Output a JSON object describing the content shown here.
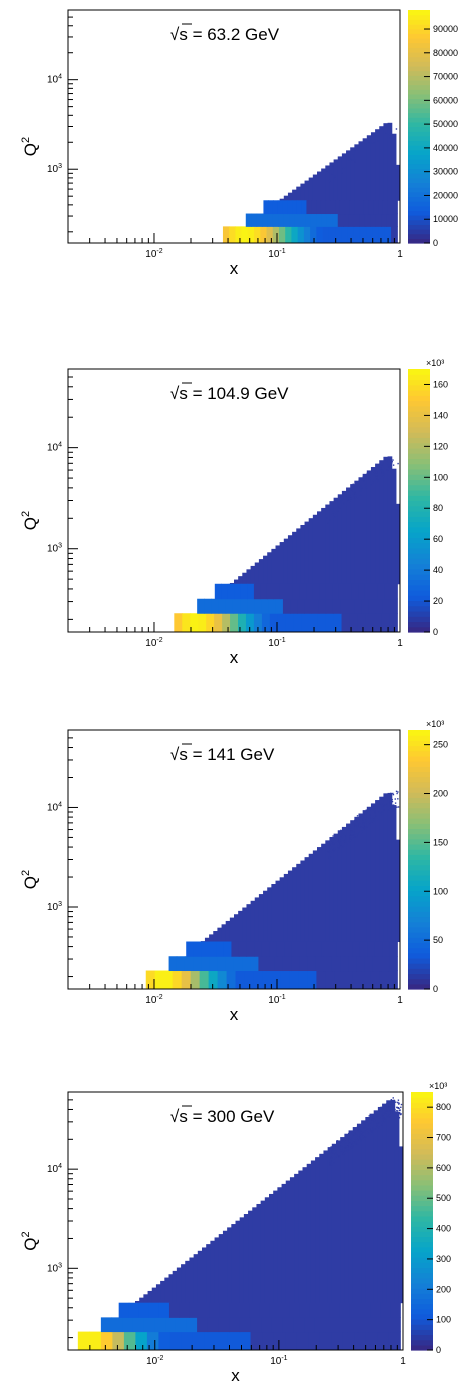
{
  "chart_data": [
    {
      "type": "heatmap",
      "title": "√s = 63.2 GeV",
      "title_radical": "√",
      "title_text": "s = 63.2 GeV",
      "xlabel": "x",
      "ylabel": "Q",
      "ylabel_sup": "2",
      "xscale": "log",
      "yscale": "log",
      "xlim": [
        0.002,
        1
      ],
      "ylim": [
        150,
        60000
      ],
      "x_ticks": [
        {
          "value": 0.01,
          "base": "10",
          "exp": "-2"
        },
        {
          "value": 0.1,
          "base": "10",
          "exp": "-1"
        },
        {
          "value": 1,
          "label": "1"
        }
      ],
      "y_ticks": [
        {
          "value": 1000,
          "base": "10",
          "exp": "3"
        },
        {
          "value": 10000,
          "base": "10",
          "exp": "4"
        }
      ],
      "x_min_edge": 0.031,
      "x_max_edge": 0.95,
      "q2_max": 3300,
      "bands": [
        [
          150,
          230
        ],
        [
          230,
          320
        ],
        [
          320,
          450
        ]
      ],
      "band_right": [
        0.82,
        0.3,
        0.16
      ],
      "peak_x": 0.055,
      "peak_value": 95000,
      "colorbar": {
        "min": 0,
        "max": 98000,
        "multiplier": "",
        "ticks": [
          {
            "value": 0,
            "label": "0"
          },
          {
            "value": 10000,
            "label": "10000"
          },
          {
            "value": 20000,
            "label": "20000"
          },
          {
            "value": 30000,
            "label": "30000"
          },
          {
            "value": 40000,
            "label": "40000"
          },
          {
            "value": 50000,
            "label": "50000"
          },
          {
            "value": 60000,
            "label": "60000"
          },
          {
            "value": 70000,
            "label": "70000"
          },
          {
            "value": 80000,
            "label": "80000"
          },
          {
            "value": 90000,
            "label": "90000"
          }
        ]
      }
    },
    {
      "type": "heatmap",
      "title": "√s = 104.9 GeV",
      "title_radical": "√",
      "title_text": "s = 104.9 GeV",
      "xlabel": "x",
      "ylabel": "Q",
      "ylabel_sup": "2",
      "xscale": "log",
      "yscale": "log",
      "xlim": [
        0.002,
        1
      ],
      "ylim": [
        150,
        60000
      ],
      "x_ticks": [
        {
          "value": 0.01,
          "base": "10",
          "exp": "-2"
        },
        {
          "value": 0.1,
          "base": "10",
          "exp": "-1"
        },
        {
          "value": 1,
          "label": "1"
        }
      ],
      "y_ticks": [
        {
          "value": 1000,
          "base": "10",
          "exp": "3"
        },
        {
          "value": 10000,
          "base": "10",
          "exp": "4"
        }
      ],
      "x_min_edge": 0.0105,
      "x_max_edge": 0.95,
      "q2_max": 8200,
      "bands": [
        [
          150,
          230
        ],
        [
          230,
          320
        ],
        [
          320,
          450
        ]
      ],
      "band_right": [
        0.3,
        0.11,
        0.06
      ],
      "peak_x": 0.022,
      "peak_value": 165000,
      "colorbar": {
        "min": 0,
        "max": 170000,
        "multiplier": "×10³",
        "ticks": [
          {
            "value": 0,
            "label": "0"
          },
          {
            "value": 20000,
            "label": "20"
          },
          {
            "value": 40000,
            "label": "40"
          },
          {
            "value": 60000,
            "label": "60"
          },
          {
            "value": 80000,
            "label": "80"
          },
          {
            "value": 100000,
            "label": "100"
          },
          {
            "value": 120000,
            "label": "120"
          },
          {
            "value": 140000,
            "label": "140"
          },
          {
            "value": 160000,
            "label": "160"
          }
        ]
      }
    },
    {
      "type": "heatmap",
      "title": "√s = 141 GeV",
      "title_radical": "√",
      "title_text": "s = 141 GeV",
      "xlabel": "x",
      "ylabel": "Q",
      "ylabel_sup": "2",
      "xscale": "log",
      "yscale": "log",
      "xlim": [
        0.002,
        1
      ],
      "ylim": [
        150,
        60000
      ],
      "x_ticks": [
        {
          "value": 0.01,
          "base": "10",
          "exp": "-2"
        },
        {
          "value": 0.1,
          "base": "10",
          "exp": "-1"
        },
        {
          "value": 1,
          "label": "1"
        }
      ],
      "y_ticks": [
        {
          "value": 1000,
          "base": "10",
          "exp": "3"
        },
        {
          "value": 10000,
          "base": "10",
          "exp": "4"
        }
      ],
      "x_min_edge": 0.0065,
      "x_max_edge": 0.95,
      "q2_max": 14000,
      "bands": [
        [
          150,
          230
        ],
        [
          230,
          320
        ],
        [
          320,
          450
        ]
      ],
      "band_right": [
        0.2,
        0.07,
        0.04
      ],
      "peak_x": 0.012,
      "peak_value": 255000,
      "colorbar": {
        "min": 0,
        "max": 265000,
        "multiplier": "×10³",
        "ticks": [
          {
            "value": 0,
            "label": "0"
          },
          {
            "value": 50000,
            "label": "50"
          },
          {
            "value": 100000,
            "label": "100"
          },
          {
            "value": 150000,
            "label": "150"
          },
          {
            "value": 200000,
            "label": "200"
          },
          {
            "value": 250000,
            "label": "250"
          }
        ]
      }
    },
    {
      "type": "heatmap",
      "title": "√s = 300 GeV",
      "title_radical": "√",
      "title_text": "s = 300 GeV",
      "xlabel": "x",
      "ylabel": "Q",
      "ylabel_sup": "2",
      "xscale": "log",
      "yscale": "log",
      "xlim": [
        0.002,
        1
      ],
      "ylim": [
        150,
        60000
      ],
      "x_ticks": [
        {
          "value": 0.01,
          "base": "10",
          "exp": "-2"
        },
        {
          "value": 0.1,
          "base": "10",
          "exp": "-1"
        },
        {
          "value": 1,
          "label": "1"
        }
      ],
      "y_ticks": [
        {
          "value": 1000,
          "base": "10",
          "exp": "3"
        },
        {
          "value": 10000,
          "base": "10",
          "exp": "4"
        }
      ],
      "x_min_edge": 0.002,
      "x_max_edge": 0.95,
      "q2_max": 50000,
      "bands": [
        [
          150,
          230
        ],
        [
          230,
          320
        ],
        [
          320,
          450
        ]
      ],
      "band_right": [
        0.05,
        0.02,
        0.012
      ],
      "peak_x": 0.003,
      "peak_value": 820000,
      "colorbar": {
        "min": 0,
        "max": 850000,
        "multiplier": "×10³",
        "ticks": [
          {
            "value": 0,
            "label": "0"
          },
          {
            "value": 100000,
            "label": "100"
          },
          {
            "value": 200000,
            "label": "200"
          },
          {
            "value": 300000,
            "label": "300"
          },
          {
            "value": 400000,
            "label": "400"
          },
          {
            "value": 500000,
            "label": "500"
          },
          {
            "value": 600000,
            "label": "600"
          },
          {
            "value": 700000,
            "label": "700"
          },
          {
            "value": 800000,
            "label": "800"
          }
        ]
      }
    }
  ]
}
